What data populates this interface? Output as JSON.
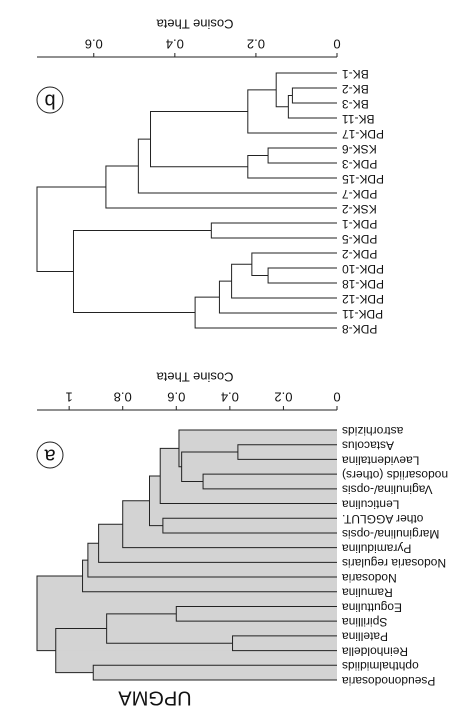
{
  "title": "UPGMA",
  "chart_data": [
    {
      "type": "dendrogram",
      "panel": "a",
      "xlabel": "Cosine Theta",
      "fill": "#d3d3d3",
      "labels": [
        "Pseudonodosaria",
        "ophthalmidiids",
        "Reinholdella",
        "Patellina",
        "Spirillina",
        "Eoguttulina",
        "Ramulina",
        "Nodosaria",
        "Nodosaria regularis",
        "Pyramidulina",
        "Marginulina/-opsis",
        "other AGGLUT.",
        "Lenticulina",
        "Vaginulina/-opsis",
        "nodosariids (others)",
        "Laevidentalina",
        "Astacolus",
        "astrorhizids"
      ],
      "merges": [
        [
          15,
          16,
          0.37
        ],
        [
          13,
          14,
          0.5
        ],
        [
          18,
          19,
          0.58
        ],
        [
          17,
          20,
          0.59
        ],
        [
          12,
          21,
          0.66
        ],
        [
          10,
          11,
          0.65
        ],
        [
          22,
          23,
          0.7
        ],
        [
          9,
          24,
          0.8
        ],
        [
          8,
          25,
          0.89
        ],
        [
          7,
          26,
          0.93
        ],
        [
          6,
          27,
          0.95
        ],
        [
          2,
          3,
          0.39
        ],
        [
          4,
          5,
          0.6
        ],
        [
          29,
          30,
          0.86
        ],
        [
          0,
          1,
          0.91
        ],
        [
          31,
          32,
          1.05
        ],
        [
          28,
          33,
          1.12
        ]
      ],
      "xlim": [
        0,
        1.12
      ],
      "xticks": [
        0,
        0.2,
        0.4,
        0.6,
        0.8,
        1
      ]
    },
    {
      "type": "dendrogram",
      "panel": "b",
      "xlabel": "Cosine Theta",
      "fill": "none",
      "labels": [
        "PDK-8",
        "PDK-11",
        "PDK-12",
        "PDK-18",
        "PDK-10",
        "PDK-2",
        "PDK-5",
        "PDK-1",
        "KSK-2",
        "PDK-7",
        "PDK-15",
        "PDK-3",
        "KSK-6",
        "PDK-17",
        "BK-11",
        "BK-3",
        "BK-2",
        "BK-1"
      ],
      "merges": [
        [
          3,
          4,
          0.17
        ],
        [
          5,
          18,
          0.21
        ],
        [
          2,
          19,
          0.26
        ],
        [
          1,
          20,
          0.29
        ],
        [
          0,
          21,
          0.35
        ],
        [
          6,
          7,
          0.31
        ],
        [
          22,
          23,
          0.65
        ],
        [
          15,
          16,
          0.11
        ],
        [
          14,
          25,
          0.12
        ],
        [
          17,
          26,
          0.15
        ],
        [
          13,
          27,
          0.22
        ],
        [
          11,
          12,
          0.17
        ],
        [
          10,
          29,
          0.22
        ],
        [
          28,
          30,
          0.46
        ],
        [
          9,
          31,
          0.49
        ],
        [
          8,
          32,
          0.57
        ],
        [
          24,
          33,
          0.74
        ]
      ],
      "xlim": [
        0,
        0.74
      ],
      "xticks": [
        0,
        0.2,
        0.4,
        0.6
      ]
    }
  ]
}
